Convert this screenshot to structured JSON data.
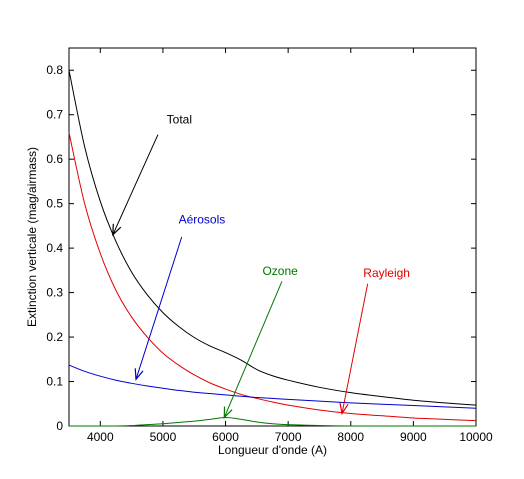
{
  "chart_data": {
    "type": "line",
    "xlabel": "Longueur d'onde (A)",
    "ylabel": "Extinction verticale (mag/airmass)",
    "xlim": [
      3500,
      10000
    ],
    "ylim": [
      0,
      0.85
    ],
    "xticks": [
      4000,
      5000,
      6000,
      7000,
      8000,
      9000,
      10000
    ],
    "yticks": [
      0,
      0.1,
      0.2,
      0.3,
      0.4,
      0.5,
      0.6,
      0.7,
      0.8
    ],
    "grid": false,
    "legend": "none",
    "x": [
      3500,
      3750,
      4000,
      4250,
      4500,
      4750,
      5000,
      5250,
      5500,
      5750,
      6000,
      6250,
      6500,
      6750,
      7000,
      7500,
      8000,
      8500,
      9000,
      9500,
      10000
    ],
    "series": [
      {
        "name": "Total",
        "color": "#000000",
        "values": [
          0.8,
          0.628,
          0.505,
          0.415,
          0.346,
          0.295,
          0.255,
          0.224,
          0.199,
          0.18,
          0.165,
          0.148,
          0.127,
          0.113,
          0.103,
          0.087,
          0.075,
          0.066,
          0.058,
          0.052,
          0.047
        ]
      },
      {
        "name": "Rayleigh",
        "color": "#e00000",
        "values": [
          0.66,
          0.5,
          0.388,
          0.305,
          0.245,
          0.2,
          0.164,
          0.137,
          0.115,
          0.097,
          0.083,
          0.071,
          0.062,
          0.054,
          0.047,
          0.036,
          0.028,
          0.023,
          0.018,
          0.015,
          0.012
        ]
      },
      {
        "name": "Aérosols",
        "color": "#0000d0",
        "values": [
          0.137,
          0.123,
          0.112,
          0.103,
          0.096,
          0.09,
          0.085,
          0.08,
          0.076,
          0.073,
          0.07,
          0.067,
          0.064,
          0.062,
          0.06,
          0.056,
          0.052,
          0.049,
          0.046,
          0.043,
          0.04
        ]
      },
      {
        "name": "Ozone",
        "color": "#007700",
        "values": [
          0.0,
          0.0,
          0.0,
          0.0,
          0.001,
          0.003,
          0.005,
          0.008,
          0.011,
          0.015,
          0.019,
          0.015,
          0.009,
          0.005,
          0.003,
          0.001,
          0.0,
          0.0,
          0.0,
          0.0,
          0.0
        ]
      }
    ],
    "annotations": [
      {
        "text": "Total",
        "color": "#000000",
        "text_x": 5060,
        "text_y": 0.68,
        "arrow_from": [
          4920,
          0.655
        ],
        "arrow_to": [
          4200,
          0.43
        ]
      },
      {
        "text": "Aérosols",
        "color": "#0000d0",
        "text_x": 5250,
        "text_y": 0.455,
        "arrow_from": [
          5300,
          0.425
        ],
        "arrow_to": [
          4570,
          0.105
        ]
      },
      {
        "text": "Ozone",
        "color": "#007700",
        "text_x": 6590,
        "text_y": 0.34,
        "arrow_from": [
          6900,
          0.325
        ],
        "arrow_to": [
          5980,
          0.019
        ]
      },
      {
        "text": "Rayleigh",
        "color": "#e00000",
        "text_x": 8200,
        "text_y": 0.335,
        "arrow_from": [
          8270,
          0.32
        ],
        "arrow_to": [
          7860,
          0.028
        ]
      }
    ]
  }
}
